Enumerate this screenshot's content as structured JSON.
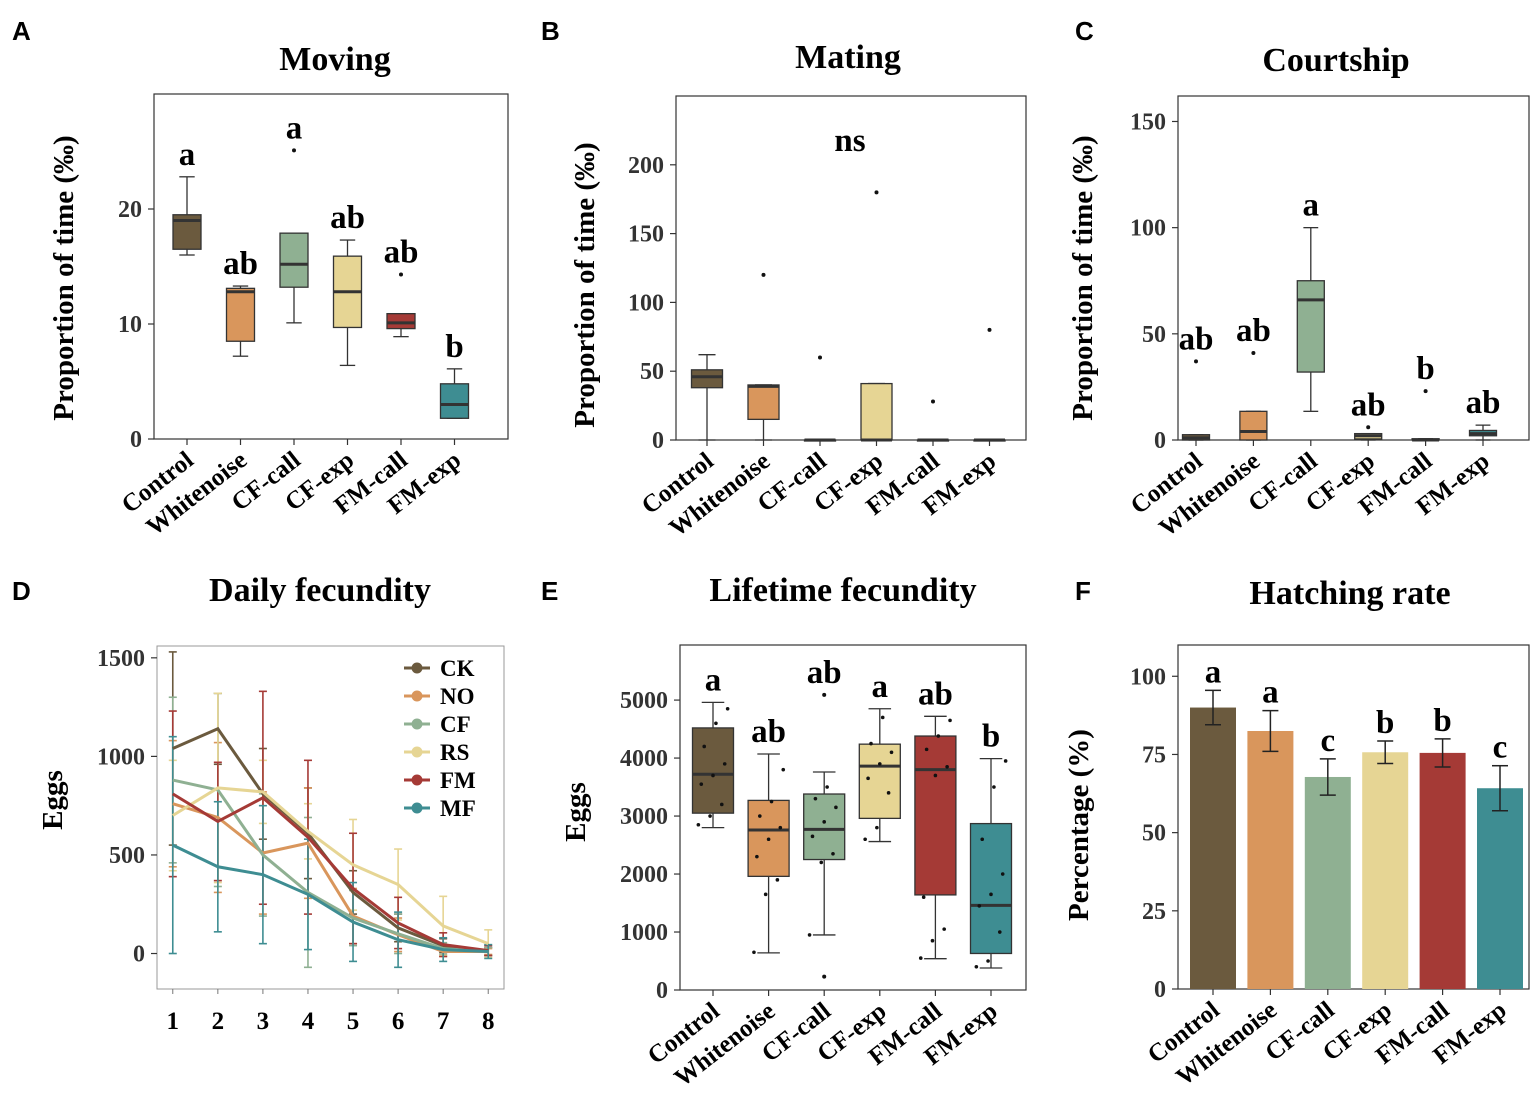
{
  "colors": {
    "Control": "#6b5a3e",
    "Whitenoise": "#d9965c",
    "CF-call": "#8fb092",
    "CF-exp": "#e6d594",
    "FM-call": "#a53a36",
    "FM-exp": "#3e8d92"
  },
  "chart_data": [
    {
      "id": "A",
      "type": "box",
      "panel_label": "A",
      "title": "Moving",
      "ylabel": "Proportion of time (‰)",
      "ylim": [
        0,
        30
      ],
      "yticks": [
        0,
        10,
        20
      ],
      "categories": [
        "Control",
        "Whitenoise",
        "CF-call",
        "CF-exp",
        "FM-call",
        "FM-exp"
      ],
      "boxes": [
        {
          "min": 16,
          "q1": 16.5,
          "median": 19,
          "q3": 19.5,
          "max": 22.8,
          "outliers": [],
          "sig": "a"
        },
        {
          "min": 7.2,
          "q1": 8.5,
          "median": 12.8,
          "q3": 13.1,
          "max": 13.3,
          "outliers": [],
          "sig": "ab"
        },
        {
          "min": 10.1,
          "q1": 13.2,
          "median": 15.2,
          "q3": 17.9,
          "max": 17.9,
          "outliers": [
            25.1
          ],
          "sig": "a"
        },
        {
          "min": 6.4,
          "q1": 9.7,
          "median": 12.8,
          "q3": 15.9,
          "max": 17.3,
          "outliers": [],
          "sig": "ab"
        },
        {
          "min": 8.9,
          "q1": 9.6,
          "median": 10.1,
          "q3": 10.9,
          "max": 10.9,
          "outliers": [
            14.3
          ],
          "sig": "ab"
        },
        {
          "min": 1.8,
          "q1": 1.8,
          "median": 3,
          "q3": 4.8,
          "max": 6.1,
          "outliers": [],
          "sig": "b"
        }
      ]
    },
    {
      "id": "B",
      "type": "box",
      "panel_label": "B",
      "title": "Mating",
      "ylabel": "Proportion of time (‰)",
      "ylim": [
        0,
        250
      ],
      "yticks": [
        0,
        50,
        100,
        150,
        200
      ],
      "categories": [
        "Control",
        "Whitenoise",
        "CF-call",
        "CF-exp",
        "FM-call",
        "FM-exp"
      ],
      "annotation": "ns",
      "boxes": [
        {
          "min": 0,
          "q1": 38,
          "median": 46,
          "q3": 51,
          "max": 62,
          "outliers": [],
          "sig": ""
        },
        {
          "min": 0,
          "q1": 15,
          "median": 39,
          "q3": 40,
          "max": 40,
          "outliers": [
            120
          ],
          "sig": ""
        },
        {
          "min": 0,
          "q1": 0,
          "median": 0,
          "q3": 0,
          "max": 0,
          "outliers": [
            60
          ],
          "sig": ""
        },
        {
          "min": 0,
          "q1": 0,
          "median": 0,
          "q3": 41,
          "max": 41,
          "outliers": [
            180
          ],
          "sig": ""
        },
        {
          "min": 0,
          "q1": 0,
          "median": 0,
          "q3": 0,
          "max": 0,
          "outliers": [
            28
          ],
          "sig": ""
        },
        {
          "min": 0,
          "q1": 0,
          "median": 0,
          "q3": 0,
          "max": 0,
          "outliers": [
            80
          ],
          "sig": ""
        }
      ]
    },
    {
      "id": "C",
      "type": "box",
      "panel_label": "C",
      "title": "Courtship",
      "ylabel": "Proportion of time (‰)",
      "ylim": [
        0,
        162
      ],
      "yticks": [
        0,
        50,
        100,
        150
      ],
      "categories": [
        "Control",
        "Whitenoise",
        "CF-call",
        "CF-exp",
        "FM-call",
        "FM-exp"
      ],
      "boxes": [
        {
          "min": 0,
          "q1": 0,
          "median": 1,
          "q3": 2.5,
          "max": 2.5,
          "outliers": [
            37
          ],
          "sig": "ab"
        },
        {
          "min": 0,
          "q1": 0,
          "median": 4,
          "q3": 13.5,
          "max": 13.5,
          "outliers": [
            41
          ],
          "sig": "ab"
        },
        {
          "min": 13.5,
          "q1": 32,
          "median": 66,
          "q3": 75,
          "max": 100,
          "outliers": [],
          "sig": "a"
        },
        {
          "min": 0,
          "q1": 0.5,
          "median": 2,
          "q3": 3,
          "max": 3,
          "outliers": [
            6
          ],
          "sig": "ab"
        },
        {
          "min": 0,
          "q1": 0,
          "median": 0,
          "q3": 0.6,
          "max": 0.6,
          "outliers": [
            23
          ],
          "sig": "b"
        },
        {
          "min": 0,
          "q1": 2,
          "median": 3,
          "q3": 4.5,
          "max": 7,
          "outliers": [],
          "sig": "ab"
        }
      ]
    },
    {
      "id": "D",
      "type": "line",
      "panel_label": "D",
      "title": "Daily fecundity",
      "ylabel": "Eggs",
      "xlim": [
        0.65,
        8.35
      ],
      "ylim": [
        -180,
        1560
      ],
      "x": [
        1,
        2,
        3,
        4,
        5,
        6,
        7,
        8
      ],
      "yticks": [
        0,
        500,
        1000,
        1500
      ],
      "series": [
        {
          "name": "CK",
          "color": "#6b5a3e",
          "values": [
            1040,
            1140,
            810,
            610,
            310,
            130,
            40,
            10
          ],
          "err": [
            490,
            180,
            230,
            230,
            110,
            70,
            35,
            20
          ]
        },
        {
          "name": "NO",
          "color": "#d9965c",
          "values": [
            760,
            690,
            510,
            560,
            190,
            95,
            10,
            10
          ],
          "err": [
            320,
            380,
            310,
            280,
            140,
            85,
            25,
            15
          ]
        },
        {
          "name": "CF",
          "color": "#8fb092",
          "values": [
            880,
            830,
            500,
            310,
            180,
            100,
            25,
            10
          ],
          "err": [
            420,
            490,
            310,
            380,
            140,
            100,
            30,
            20
          ]
        },
        {
          "name": "RS",
          "color": "#e6d594",
          "values": [
            700,
            840,
            820,
            620,
            450,
            350,
            140,
            50
          ],
          "err": [
            280,
            480,
            160,
            140,
            230,
            180,
            150,
            70
          ]
        },
        {
          "name": "FM",
          "color": "#a53a36",
          "values": [
            810,
            670,
            790,
            590,
            330,
            155,
            45,
            15
          ],
          "err": [
            420,
            300,
            540,
            390,
            280,
            130,
            60,
            25
          ]
        },
        {
          "name": "MF",
          "color": "#3e8d92",
          "values": [
            550,
            440,
            400,
            300,
            160,
            70,
            20,
            10
          ],
          "err": [
            550,
            330,
            350,
            280,
            200,
            140,
            60,
            35
          ]
        }
      ]
    },
    {
      "id": "E",
      "type": "box",
      "panel_label": "E",
      "title": "Lifetime fecundity",
      "ylabel": "Eggs",
      "ylim": [
        0,
        5950
      ],
      "yticks": [
        0,
        1000,
        2000,
        3000,
        4000,
        5000
      ],
      "categories": [
        "Control",
        "Whitenoise",
        "CF-call",
        "CF-exp",
        "FM-call",
        "FM-exp"
      ],
      "boxes": [
        {
          "min": 2800,
          "q1": 3050,
          "median": 3720,
          "q3": 4520,
          "max": 4960,
          "outliers": [],
          "sig": "a",
          "points": [
            2850,
            3000,
            3200,
            3550,
            3700,
            3900,
            4200,
            4600,
            4850
          ]
        },
        {
          "min": 640,
          "q1": 1960,
          "median": 2760,
          "q3": 3270,
          "max": 4070,
          "outliers": [],
          "sig": "ab",
          "points": [
            650,
            1650,
            1900,
            2300,
            2600,
            2800,
            3000,
            3250,
            3800
          ]
        },
        {
          "min": 950,
          "q1": 2250,
          "median": 2770,
          "q3": 3380,
          "max": 3760,
          "outliers": [
            230,
            5090
          ],
          "sig": "ab",
          "points": [
            950,
            2200,
            2350,
            2650,
            2900,
            3150,
            3300,
            3500
          ]
        },
        {
          "min": 2560,
          "q1": 2960,
          "median": 3860,
          "q3": 4240,
          "max": 4850,
          "outliers": [],
          "sig": "a",
          "points": [
            2600,
            2800,
            3400,
            3650,
            3900,
            4100,
            4250,
            4700
          ]
        },
        {
          "min": 540,
          "q1": 1640,
          "median": 3800,
          "q3": 4380,
          "max": 4720,
          "outliers": [],
          "sig": "ab",
          "points": [
            550,
            850,
            1050,
            1600,
            3700,
            3850,
            4150,
            4380,
            4650
          ]
        },
        {
          "min": 380,
          "q1": 630,
          "median": 1460,
          "q3": 2870,
          "max": 3990,
          "outliers": [],
          "sig": "b",
          "points": [
            400,
            500,
            1000,
            1450,
            1650,
            2000,
            2600,
            3500,
            3950
          ]
        }
      ]
    },
    {
      "id": "F",
      "type": "bar",
      "panel_label": "F",
      "title": "Hatching rate",
      "ylabel": "Percentage (%)",
      "ylim": [
        0,
        110
      ],
      "yticks": [
        0,
        25,
        50,
        75,
        100
      ],
      "categories": [
        "Control",
        "Whitenoise",
        "CF-call",
        "CF-exp",
        "FM-call",
        "FM-exp"
      ],
      "values": [
        90,
        82.5,
        67.8,
        75.7,
        75.5,
        64.2
      ],
      "errors": [
        5.5,
        6.5,
        5.8,
        3.6,
        4.5,
        7.2
      ],
      "sig": [
        "a",
        "a",
        "c",
        "b",
        "b",
        "c"
      ]
    }
  ]
}
